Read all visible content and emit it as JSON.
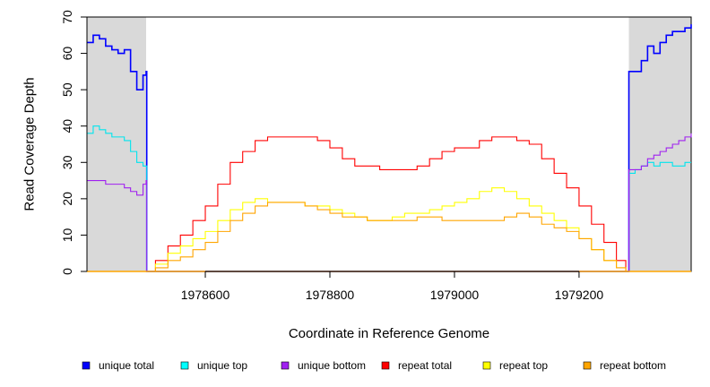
{
  "chart_data": {
    "type": "line",
    "xlabel": "Coordinate in Reference Genome",
    "ylabel": "Read Coverage Depth",
    "xlim": [
      1978410,
      1979380
    ],
    "ylim": [
      0,
      70
    ],
    "x_ticks": [
      1978600,
      1978800,
      1979000,
      1979200
    ],
    "y_ticks": [
      0,
      10,
      20,
      30,
      40,
      50,
      60,
      70
    ],
    "shaded_regions": [
      [
        1978410,
        1978505
      ],
      [
        1979280,
        1979380
      ]
    ],
    "shade_color": "#d9d9d9",
    "legend_position": "bottom",
    "series": [
      {
        "name": "unique total",
        "color": "#0000ff",
        "x": [
          1978410,
          1978420,
          1978430,
          1978440,
          1978450,
          1978460,
          1978470,
          1978480,
          1978490,
          1978500,
          1978505,
          1978506,
          1979279,
          1979280,
          1979290,
          1979300,
          1979310,
          1979320,
          1979330,
          1979340,
          1979350,
          1979360,
          1979370,
          1979380
        ],
        "y": [
          63,
          65,
          64,
          62,
          61,
          60,
          61,
          55,
          50,
          54,
          55,
          0,
          0,
          55,
          55,
          58,
          62,
          60,
          63,
          65,
          66,
          66,
          67,
          68
        ]
      },
      {
        "name": "unique top",
        "color": "#00e5ee",
        "x": [
          1978410,
          1978420,
          1978430,
          1978440,
          1978450,
          1978460,
          1978470,
          1978480,
          1978490,
          1978500,
          1978505,
          1978506,
          1979279,
          1979280,
          1979290,
          1979300,
          1979310,
          1979320,
          1979330,
          1979340,
          1979350,
          1979360,
          1979370,
          1979380
        ],
        "y": [
          38,
          40,
          39,
          38,
          37,
          37,
          36,
          33,
          30,
          29,
          29,
          0,
          0,
          27,
          28,
          29,
          30,
          29,
          30,
          30,
          29,
          29,
          30,
          30
        ]
      },
      {
        "name": "unique bottom",
        "color": "#a020f0",
        "x": [
          1978410,
          1978420,
          1978430,
          1978440,
          1978450,
          1978460,
          1978470,
          1978480,
          1978490,
          1978500,
          1978505,
          1978506,
          1979279,
          1979280,
          1979290,
          1979300,
          1979310,
          1979320,
          1979330,
          1979340,
          1979350,
          1979360,
          1979370,
          1979380
        ],
        "y": [
          25,
          25,
          25,
          24,
          24,
          24,
          23,
          22,
          21,
          24,
          25,
          0,
          0,
          28,
          28,
          29,
          31,
          32,
          33,
          34,
          35,
          36,
          37,
          38
        ]
      },
      {
        "name": "repeat total",
        "color": "#ff0000",
        "x": [
          1978505,
          1978520,
          1978540,
          1978560,
          1978580,
          1978600,
          1978620,
          1978640,
          1978660,
          1978680,
          1978700,
          1978720,
          1978740,
          1978760,
          1978780,
          1978800,
          1978820,
          1978840,
          1978860,
          1978880,
          1978900,
          1978920,
          1978940,
          1978960,
          1978980,
          1979000,
          1979020,
          1979040,
          1979060,
          1979080,
          1979100,
          1979120,
          1979140,
          1979160,
          1979180,
          1979200,
          1979220,
          1979240,
          1979260,
          1979275
        ],
        "y": [
          0,
          3,
          7,
          10,
          14,
          18,
          24,
          30,
          33,
          36,
          37,
          37,
          37,
          37,
          36,
          34,
          31,
          29,
          29,
          28,
          28,
          28,
          29,
          31,
          33,
          34,
          34,
          36,
          37,
          37,
          36,
          35,
          31,
          27,
          23,
          18,
          13,
          8,
          3,
          0
        ]
      },
      {
        "name": "repeat top",
        "color": "#ffff00",
        "x": [
          1978505,
          1978520,
          1978540,
          1978560,
          1978580,
          1978600,
          1978620,
          1978640,
          1978660,
          1978680,
          1978700,
          1978720,
          1978740,
          1978760,
          1978780,
          1978800,
          1978820,
          1978840,
          1978860,
          1978880,
          1978900,
          1978920,
          1978940,
          1978960,
          1978980,
          1979000,
          1979020,
          1979040,
          1979060,
          1979080,
          1979100,
          1979120,
          1979140,
          1979160,
          1979180,
          1979200,
          1979220,
          1979240,
          1979260,
          1979275
        ],
        "y": [
          0,
          2,
          5,
          7,
          9,
          11,
          14,
          17,
          19,
          20,
          19,
          19,
          19,
          18,
          18,
          17,
          16,
          15,
          14,
          14,
          15,
          16,
          16,
          17,
          18,
          19,
          20,
          22,
          23,
          22,
          20,
          18,
          16,
          14,
          12,
          9,
          6,
          3,
          1,
          0
        ]
      },
      {
        "name": "repeat bottom",
        "color": "#ffa500",
        "x": [
          1978505,
          1978520,
          1978540,
          1978560,
          1978580,
          1978600,
          1978620,
          1978640,
          1978660,
          1978680,
          1978700,
          1978720,
          1978740,
          1978760,
          1978780,
          1978800,
          1978820,
          1978840,
          1978860,
          1978880,
          1978900,
          1978920,
          1978940,
          1978960,
          1978980,
          1979000,
          1979020,
          1979040,
          1979060,
          1979080,
          1979100,
          1979120,
          1979140,
          1979160,
          1979180,
          1979200,
          1979220,
          1979240,
          1979260,
          1979275
        ],
        "y": [
          0,
          1,
          3,
          4,
          6,
          8,
          11,
          14,
          16,
          18,
          19,
          19,
          19,
          18,
          17,
          16,
          15,
          15,
          14,
          14,
          14,
          14,
          15,
          15,
          14,
          14,
          14,
          14,
          14,
          15,
          16,
          15,
          13,
          12,
          11,
          9,
          6,
          3,
          1,
          0
        ]
      }
    ]
  }
}
